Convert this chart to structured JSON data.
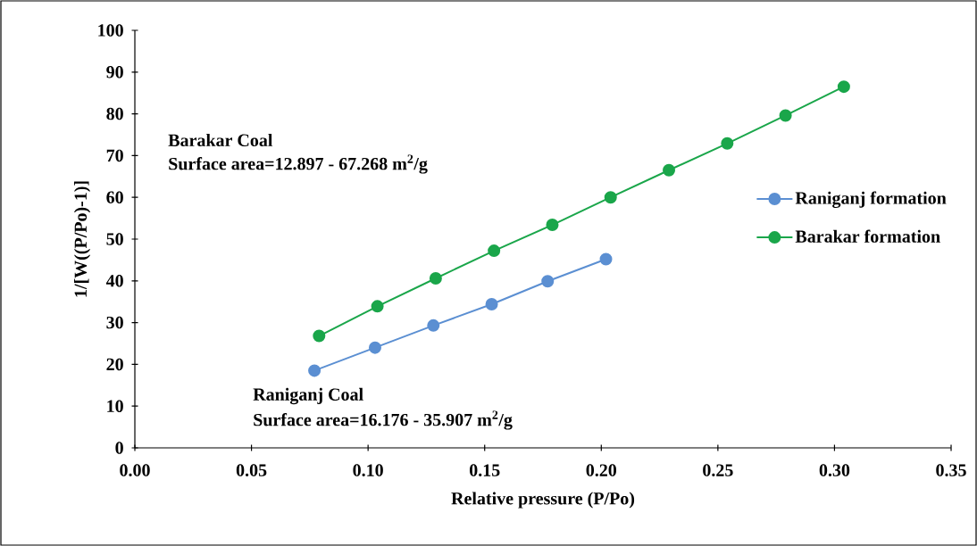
{
  "chart_data": {
    "type": "line",
    "xlabel": "Relative pressure (P/Po)",
    "ylabel": "1/[W((P/Po)-1)]",
    "annotations": [
      "Barakar Coal",
      "Surface area=12.897 - 67.268 m$^{2}$/g",
      "Raniganj Coal",
      "Surface area=16.176 - 35.907 m$^{2}$/g"
    ],
    "series": [
      {
        "name": "Raniganj formation",
        "color": "#5b8fd2",
        "x": [
          0.077,
          0.103,
          0.128,
          0.153,
          0.177,
          0.202
        ],
        "values": [
          18.5,
          24.0,
          29.3,
          34.4,
          39.9,
          45.2
        ]
      },
      {
        "name": "Barakar formation",
        "color": "#1aa64a",
        "x": [
          0.079,
          0.104,
          0.129,
          0.154,
          0.179,
          0.204,
          0.229,
          0.254,
          0.279,
          0.304
        ],
        "values": [
          26.8,
          33.9,
          40.6,
          47.2,
          53.4,
          60.0,
          66.5,
          72.9,
          79.6,
          86.5
        ]
      }
    ],
    "xlim": [
      0,
      0.35
    ],
    "ylim": [
      0,
      100
    ],
    "xticks": [
      {
        "value": 0,
        "label": "0.00"
      },
      0.05,
      {
        "value": 0.1,
        "label": "0.10"
      },
      0.15,
      {
        "value": 0.2,
        "label": "0.20"
      },
      0.25,
      {
        "value": 0.3,
        "label": "0.30"
      },
      0.35
    ],
    "yticks": [
      0,
      10,
      20,
      30,
      40,
      50,
      60,
      70,
      80,
      90,
      100
    ],
    "legend": "right",
    "marker": "circle",
    "line_style": "solid",
    "grid": false
  }
}
